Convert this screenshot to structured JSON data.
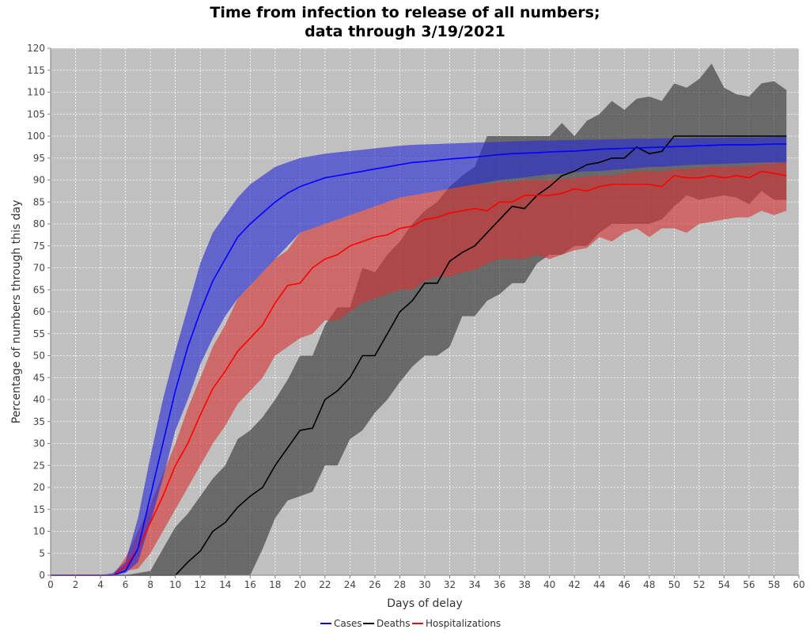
{
  "chart_data": {
    "type": "line",
    "title_line1": "Time from infection to release of all numbers;",
    "title_line2": "data through 3/19/2021",
    "xlabel": "Days of delay",
    "ylabel": "Percentage of numbers through this day",
    "xlim": [
      0,
      60
    ],
    "ylim": [
      0,
      120
    ],
    "x_ticks": [
      0,
      2,
      4,
      6,
      8,
      10,
      12,
      14,
      16,
      18,
      20,
      22,
      24,
      26,
      28,
      30,
      32,
      34,
      36,
      38,
      40,
      42,
      44,
      46,
      48,
      50,
      52,
      54,
      56,
      58,
      60
    ],
    "y_ticks": [
      0,
      5,
      10,
      15,
      20,
      25,
      30,
      35,
      40,
      45,
      50,
      55,
      60,
      65,
      70,
      75,
      80,
      85,
      90,
      95,
      100,
      105,
      110,
      115,
      120
    ],
    "grid": true,
    "legend_placement": "bottom",
    "colors": {
      "plot_background": "#c0c0c0",
      "cases_line": "#0000ff",
      "cases_band": "#2a2ad4",
      "deaths_line": "#000000",
      "deaths_band": "#333333",
      "hosp_line": "#ff0000",
      "hosp_band": "#d63333"
    },
    "x": [
      0,
      1,
      2,
      3,
      4,
      5,
      6,
      7,
      8,
      9,
      10,
      11,
      12,
      13,
      14,
      15,
      16,
      17,
      18,
      19,
      20,
      21,
      22,
      23,
      24,
      25,
      26,
      27,
      28,
      29,
      30,
      31,
      32,
      33,
      34,
      35,
      36,
      37,
      38,
      39,
      40,
      41,
      42,
      43,
      44,
      45,
      46,
      47,
      48,
      49,
      50,
      51,
      52,
      53,
      54,
      55,
      56,
      57,
      58,
      59
    ],
    "series": [
      {
        "name": "Cases",
        "line": [
          0,
          0,
          0,
          0,
          0,
          0,
          1,
          6,
          18,
          30,
          42,
          52,
          60,
          67,
          72,
          77,
          80,
          82.5,
          85,
          87,
          88.5,
          89.5,
          90.5,
          91,
          91.5,
          92,
          92.5,
          93,
          93.5,
          94,
          94.2,
          94.5,
          94.8,
          95,
          95.2,
          95.5,
          95.8,
          96,
          96.1,
          96.2,
          96.4,
          96.5,
          96.6,
          96.8,
          97,
          97.1,
          97.2,
          97.3,
          97.4,
          97.5,
          97.6,
          97.7,
          97.8,
          97.9,
          98,
          98,
          98,
          98.1,
          98.2,
          98.2
        ],
        "lower": [
          0,
          0,
          0,
          0,
          0,
          0,
          0.5,
          3,
          12,
          22,
          33,
          40,
          48,
          54,
          59,
          63,
          66,
          69,
          72,
          75,
          78,
          79,
          80,
          81,
          82,
          83,
          84,
          85,
          86,
          86.5,
          87,
          87.5,
          88,
          88.5,
          89,
          89.5,
          90,
          90.3,
          90.6,
          91,
          91.3,
          91.5,
          91.8,
          92,
          92,
          92.3,
          92.5,
          92.7,
          93,
          93,
          93.2,
          93.4,
          93.5,
          93.6,
          93.7,
          93.8,
          93.9,
          94,
          94,
          94
        ],
        "upper": [
          0,
          0,
          0,
          0,
          0,
          0.5,
          3,
          13,
          27,
          40,
          51,
          61,
          71,
          78,
          82,
          86,
          89,
          91,
          93,
          94,
          95,
          95.5,
          96,
          96.3,
          96.6,
          96.9,
          97.2,
          97.5,
          97.8,
          98,
          98.1,
          98.2,
          98.3,
          98.4,
          98.5,
          98.6,
          98.7,
          98.8,
          98.9,
          99,
          99,
          99.1,
          99.1,
          99.2,
          99.2,
          99.3,
          99.3,
          99.4,
          99.4,
          99.5,
          99.5,
          99.5,
          99.6,
          99.6,
          99.6,
          99.7,
          99.7,
          99.7,
          99.8,
          99.8
        ]
      },
      {
        "name": "Deaths",
        "line": [
          0,
          0,
          0,
          0,
          0,
          0,
          0,
          0,
          0,
          0,
          0,
          3,
          5.5,
          10,
          12,
          15.5,
          18,
          20,
          25,
          29,
          33,
          33.5,
          40,
          42,
          45,
          50,
          50,
          55,
          60,
          62.5,
          66.5,
          66.5,
          71.5,
          73.5,
          75,
          78,
          81,
          84,
          83.5,
          86.5,
          88.5,
          91,
          92,
          93.5,
          94,
          95,
          95,
          97.5,
          96,
          96.5,
          100,
          100,
          100,
          100,
          100,
          100,
          100,
          100,
          100,
          100
        ],
        "lower": [
          0,
          0,
          0,
          0,
          0,
          0,
          0,
          0,
          0,
          0,
          0,
          0,
          0,
          0,
          0,
          0,
          0,
          6,
          13,
          17,
          18,
          19,
          25,
          25,
          31,
          33,
          37,
          40,
          44,
          47.5,
          50,
          50,
          52,
          59,
          59,
          62.5,
          64,
          66.5,
          66.5,
          71,
          73,
          73,
          75,
          75,
          78,
          80,
          80,
          80,
          80,
          81,
          84,
          86.5,
          85.5,
          86,
          86.5,
          86,
          84.5,
          87.5,
          85.5,
          85.5
        ],
        "upper": [
          0,
          0,
          0,
          0,
          0,
          0,
          0,
          0.5,
          1,
          6,
          11,
          14,
          18,
          22,
          25,
          31,
          33,
          36,
          40,
          44.5,
          50,
          50,
          57,
          61,
          61,
          70,
          69,
          73,
          76,
          80,
          83,
          85,
          88.5,
          91,
          93,
          100,
          100,
          100,
          100,
          100,
          100,
          103,
          100,
          103.5,
          105,
          108,
          106,
          108.5,
          109,
          108,
          112,
          111,
          113,
          116.5,
          111,
          109.5,
          109,
          112,
          112.5,
          110.5
        ]
      },
      {
        "name": "Hospitalizations",
        "line": [
          0,
          0,
          0,
          0,
          0,
          0,
          2,
          6,
          12,
          18,
          25,
          30,
          36.5,
          42.5,
          46.5,
          51,
          54,
          57,
          62,
          66,
          66.5,
          70,
          72,
          73,
          75,
          76,
          77,
          77.5,
          79,
          79.5,
          81,
          81.5,
          82.5,
          83,
          83.5,
          83,
          85,
          85,
          86.5,
          86.5,
          86.5,
          87,
          88,
          87.5,
          88.5,
          89,
          89,
          89,
          89,
          88.5,
          91,
          90.5,
          90.5,
          91,
          90.5,
          91,
          90.5,
          92,
          91.5,
          91
        ],
        "lower": [
          0,
          0,
          0,
          0,
          0,
          0,
          1,
          1.5,
          5,
          10,
          15,
          20,
          25,
          30,
          34,
          39,
          42,
          45,
          50,
          52,
          54,
          55,
          58,
          58,
          60,
          62,
          63,
          64,
          65,
          65,
          67,
          68,
          68,
          69,
          69.5,
          71,
          72,
          72,
          72,
          73,
          72,
          73,
          74,
          74.5,
          77,
          76,
          78,
          79,
          77,
          79,
          79,
          78,
          80,
          80.5,
          81,
          81.5,
          81.5,
          83,
          82,
          83
        ],
        "upper": [
          0,
          0,
          0,
          0,
          0,
          0,
          4,
          10,
          16,
          23,
          30,
          38,
          45,
          52,
          57,
          63,
          66,
          69,
          72,
          74,
          78,
          79,
          80,
          81,
          82,
          83,
          84,
          85,
          86,
          86.5,
          87,
          87.5,
          88,
          88.5,
          89,
          89,
          89.5,
          89.5,
          90,
          90,
          90,
          90.3,
          90.5,
          90.8,
          91,
          91,
          91.5,
          92,
          92,
          92,
          92.5,
          92.5,
          92.8,
          93,
          93,
          93,
          93.2,
          93.5,
          93.8,
          94
        ]
      }
    ]
  }
}
